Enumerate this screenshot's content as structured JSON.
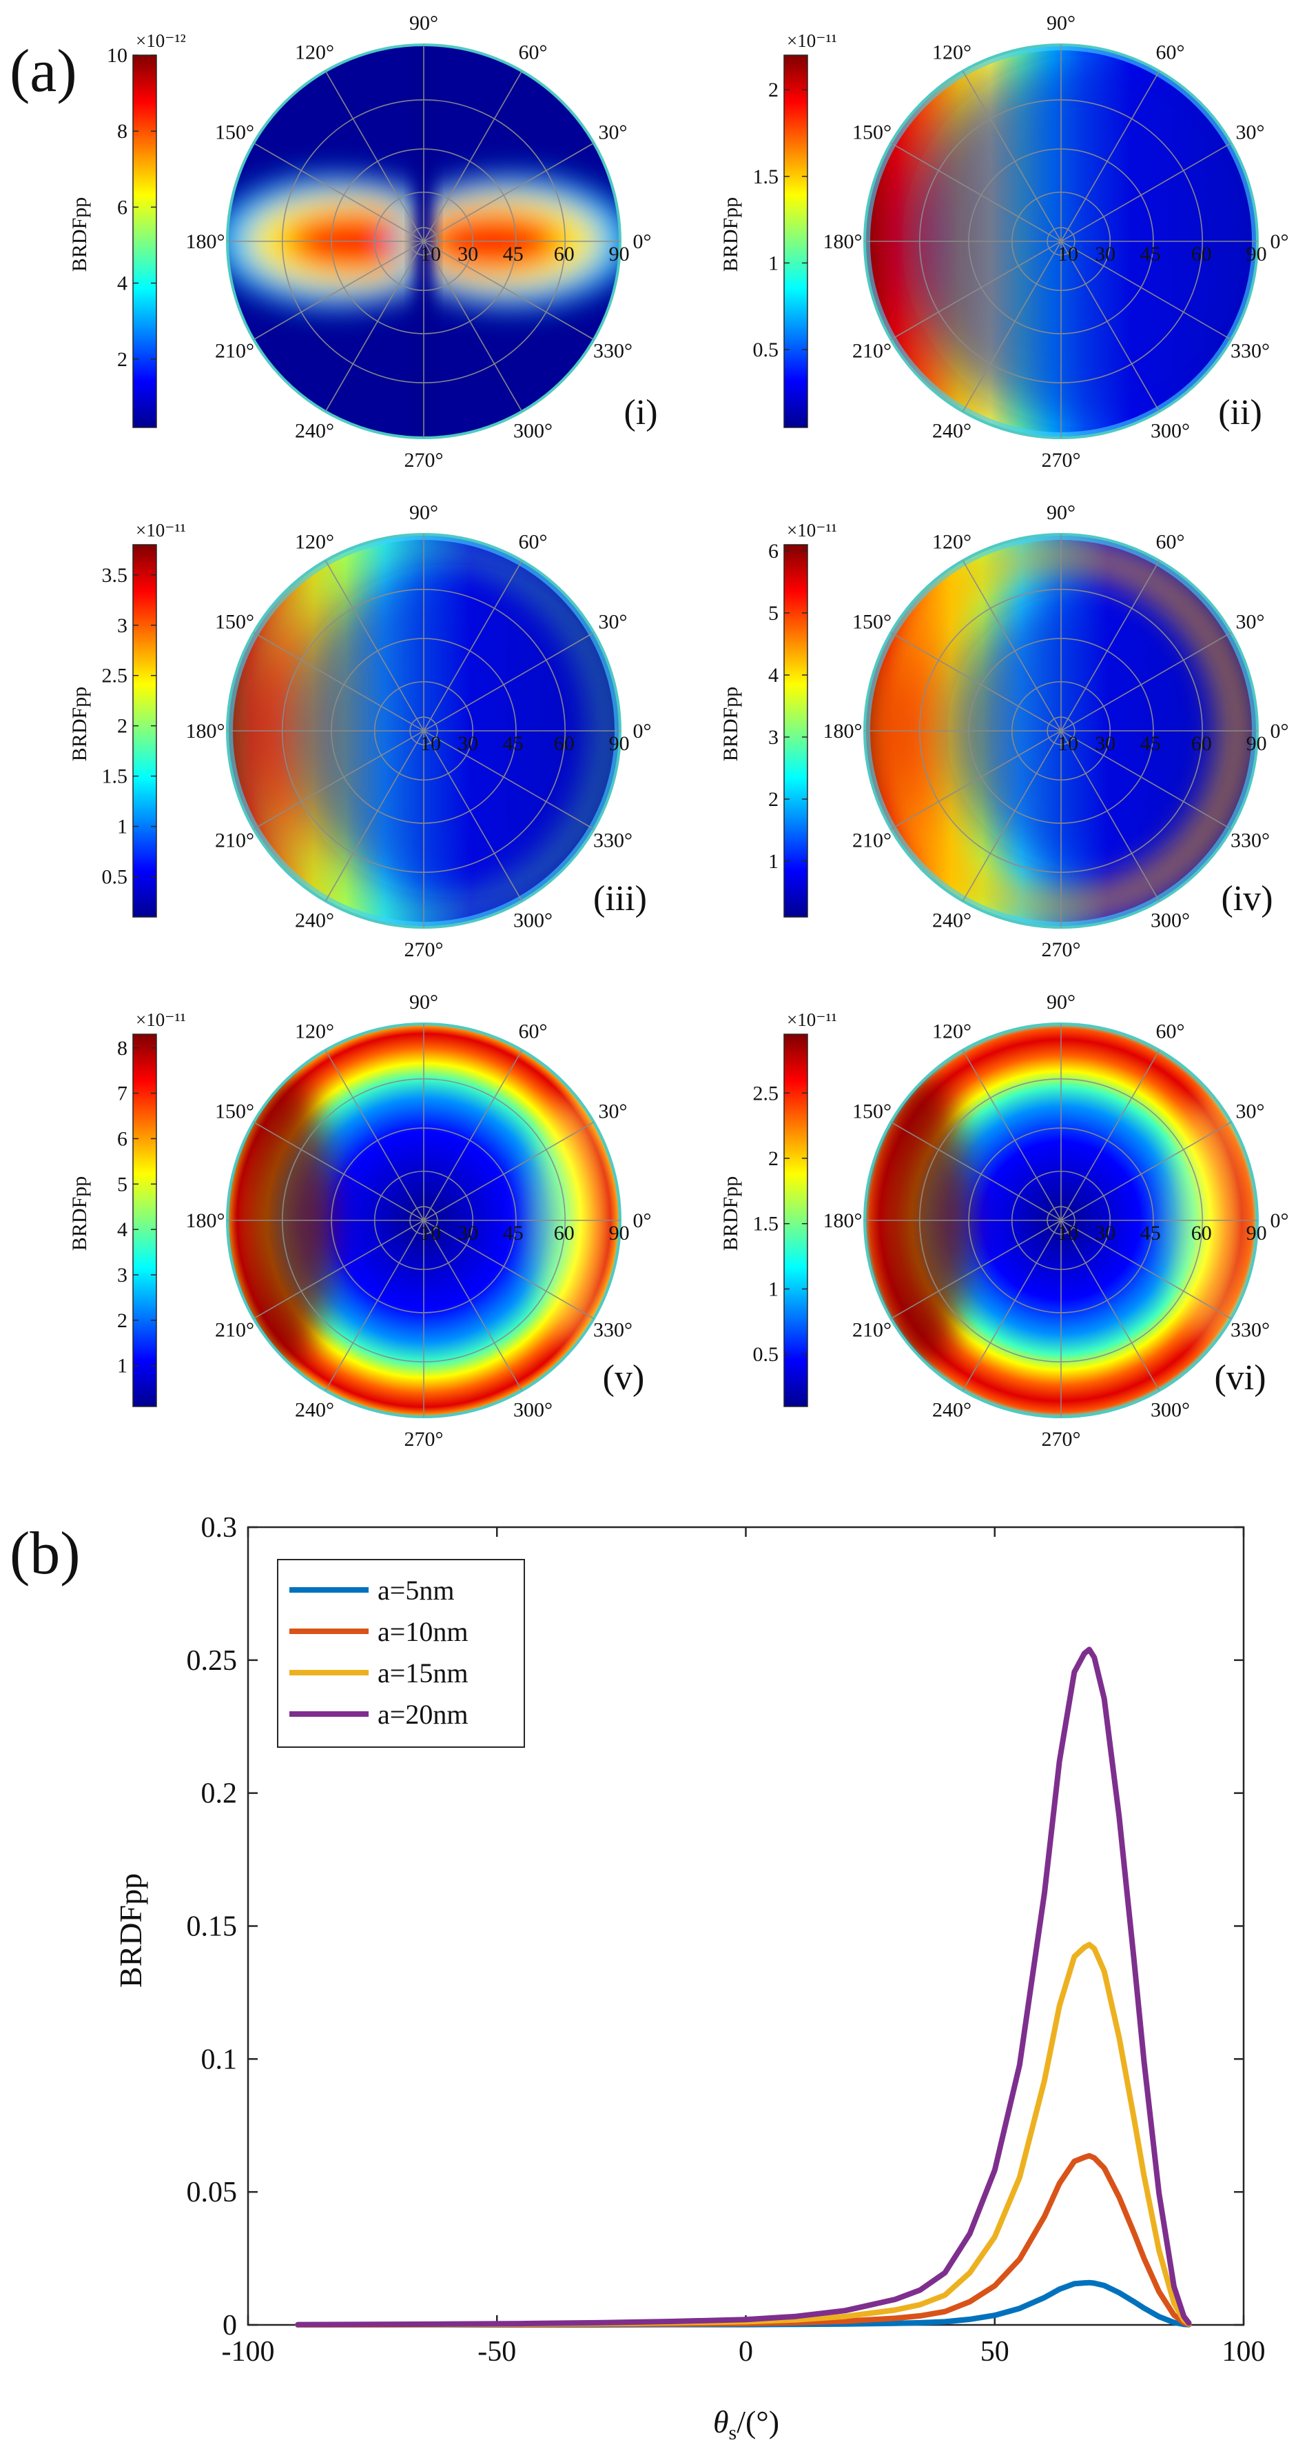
{
  "chart_data": [
    {
      "type": "heatmap",
      "panel_label": "(a)",
      "projection": "polar",
      "angle_ticks": [
        "0°",
        "30°",
        "60°",
        "90°",
        "120°",
        "150°",
        "180°",
        "210°",
        "240°",
        "270°",
        "300°",
        "330°"
      ],
      "radial_ticks": [
        "10",
        "30",
        "45",
        "60",
        "90"
      ],
      "colorbar_label": "BRDFpp",
      "colormap": [
        "#00008f",
        "#0000ff",
        "#0080ff",
        "#00ffff",
        "#80ff80",
        "#ffff00",
        "#ff8000",
        "#ff0000",
        "#800000"
      ],
      "grid": true,
      "subplots": [
        {
          "label": "(i)",
          "exponent": "×10⁻¹²",
          "cb_range": [
            0.2,
            10
          ],
          "cb_ticks": [
            "2",
            "4",
            "6",
            "8",
            "10"
          ],
          "cb_tick_values": [
            2,
            4,
            6,
            8,
            10
          ],
          "pattern": "lobes"
        },
        {
          "label": "(ii)",
          "exponent": "×10⁻¹¹",
          "cb_range": [
            0.05,
            2.2
          ],
          "cb_ticks": [
            "0.5",
            "1",
            "1.5",
            "2"
          ],
          "cb_tick_values": [
            0.5,
            1,
            1.5,
            2
          ],
          "pattern": "crescent-a"
        },
        {
          "label": "(iii)",
          "exponent": "×10⁻¹¹",
          "cb_range": [
            0.1,
            3.8
          ],
          "cb_ticks": [
            "0.5",
            "1",
            "1.5",
            "2",
            "2.5",
            "3",
            "3.5"
          ],
          "cb_tick_values": [
            0.5,
            1,
            1.5,
            2,
            2.5,
            3,
            3.5
          ],
          "pattern": "crescent-b"
        },
        {
          "label": "(iv)",
          "exponent": "×10⁻¹¹",
          "cb_range": [
            0.1,
            6.1
          ],
          "cb_ticks": [
            "1",
            "2",
            "3",
            "4",
            "5",
            "6"
          ],
          "cb_tick_values": [
            1,
            2,
            3,
            4,
            5,
            6
          ],
          "pattern": "crescent-c"
        },
        {
          "label": "(v)",
          "exponent": "×10⁻¹¹",
          "cb_range": [
            0.1,
            8.3
          ],
          "cb_ticks": [
            "1",
            "2",
            "3",
            "4",
            "5",
            "6",
            "7",
            "8"
          ],
          "cb_tick_values": [
            1,
            2,
            3,
            4,
            5,
            6,
            7,
            8
          ],
          "pattern": "ring-a"
        },
        {
          "label": "(vi)",
          "exponent": "×10⁻¹¹",
          "cb_range": [
            0.1,
            2.95
          ],
          "cb_ticks": [
            "0.5",
            "1",
            "1.5",
            "2",
            "2.5"
          ],
          "cb_tick_values": [
            0.5,
            1,
            1.5,
            2,
            2.5
          ],
          "pattern": "ring-b"
        }
      ]
    },
    {
      "type": "line",
      "panel_label": "(b)",
      "xlabel": "θs/(°)",
      "ylabel": "BRDFpp",
      "xlim": [
        -100,
        100
      ],
      "ylim": [
        0,
        0.3
      ],
      "xticks": [
        -100,
        -50,
        0,
        50,
        100
      ],
      "yticks": [
        0,
        0.05,
        0.1,
        0.15,
        0.2,
        0.25,
        0.3
      ],
      "x": [
        -90,
        -75,
        -60,
        -45,
        -30,
        -15,
        0,
        10,
        20,
        30,
        35,
        40,
        45,
        50,
        55,
        60,
        63,
        66,
        68,
        69,
        70,
        72,
        75,
        78,
        80,
        83,
        86,
        88,
        89
      ],
      "series": [
        {
          "name": "a=5nm",
          "color": "#0072bd",
          "values": [
            0,
            0,
            0,
            0,
            0,
            0.0001,
            0.0001,
            0.0002,
            0.0003,
            0.0006,
            0.0008,
            0.0012,
            0.0021,
            0.0036,
            0.0062,
            0.0103,
            0.0134,
            0.0155,
            0.0158,
            0.0159,
            0.0157,
            0.0148,
            0.0121,
            0.0087,
            0.0063,
            0.0031,
            0.0009,
            0.0002,
            0.0001
          ]
        },
        {
          "name": "a=10nm",
          "color": "#d95319",
          "values": [
            0,
            0,
            0.0001,
            0.0001,
            0.0002,
            0.0003,
            0.0005,
            0.0008,
            0.0014,
            0.0025,
            0.0034,
            0.005,
            0.0087,
            0.0147,
            0.0247,
            0.0408,
            0.0532,
            0.0615,
            0.063,
            0.0636,
            0.0628,
            0.059,
            0.048,
            0.0345,
            0.025,
            0.0125,
            0.0037,
            0.0008,
            0.0002
          ]
        },
        {
          "name": "a=15nm",
          "color": "#edb120",
          "values": [
            0,
            0.0001,
            0.0001,
            0.0003,
            0.0005,
            0.0008,
            0.0012,
            0.0019,
            0.0032,
            0.0056,
            0.0076,
            0.0112,
            0.0196,
            0.0331,
            0.0555,
            0.092,
            0.12,
            0.1385,
            0.142,
            0.143,
            0.1415,
            0.133,
            0.108,
            0.0775,
            0.056,
            0.028,
            0.0082,
            0.0018,
            0.0004
          ]
        },
        {
          "name": "a=20nm",
          "color": "#7e2f8e",
          "values": [
            0.0001,
            0.0002,
            0.0003,
            0.0005,
            0.0008,
            0.0013,
            0.002,
            0.0032,
            0.0054,
            0.0096,
            0.0131,
            0.0196,
            0.0343,
            0.0582,
            0.0978,
            0.1625,
            0.212,
            0.2455,
            0.2525,
            0.254,
            0.251,
            0.2355,
            0.191,
            0.137,
            0.099,
            0.0495,
            0.0145,
            0.0032,
            0.0007
          ]
        }
      ],
      "legend_position": "top-left",
      "grid": false
    }
  ]
}
